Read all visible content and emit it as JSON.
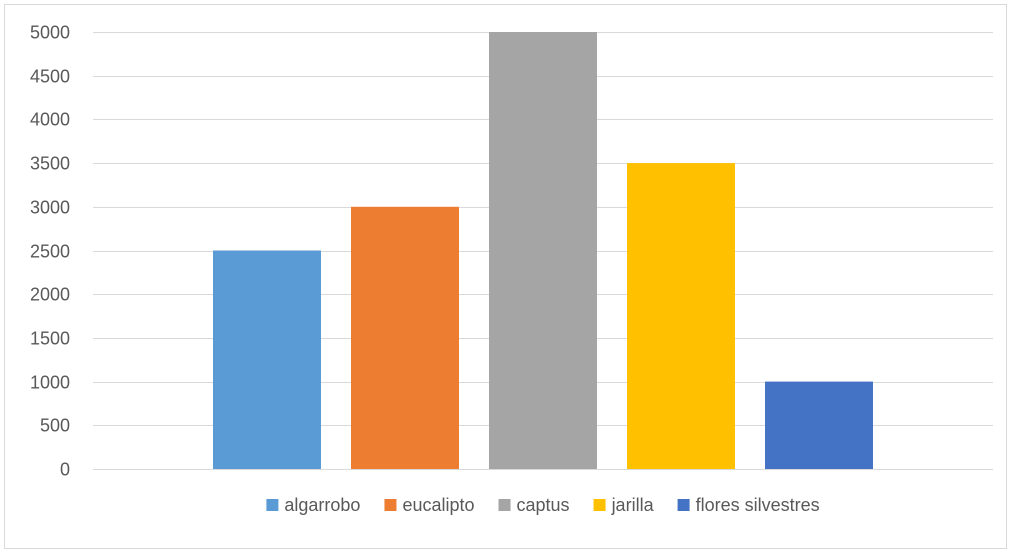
{
  "chart_data": {
    "type": "bar",
    "title": "",
    "xlabel": "",
    "ylabel": "",
    "ylim": [
      0,
      5000
    ],
    "yticks": [
      0,
      500,
      1000,
      1500,
      2000,
      2500,
      3000,
      3500,
      4000,
      4500,
      5000
    ],
    "grid": true,
    "legend_position": "bottom",
    "series": [
      {
        "name": "algarrobo",
        "values": [
          2500
        ],
        "color": "#5b9bd5"
      },
      {
        "name": "eucalipto",
        "values": [
          3000
        ],
        "color": "#ed7d31"
      },
      {
        "name": "captus",
        "values": [
          5000
        ],
        "color": "#a5a5a5"
      },
      {
        "name": "jarilla",
        "values": [
          3500
        ],
        "color": "#ffc000"
      },
      {
        "name": "flores silvestres",
        "values": [
          1000
        ],
        "color": "#4472c4"
      }
    ]
  }
}
